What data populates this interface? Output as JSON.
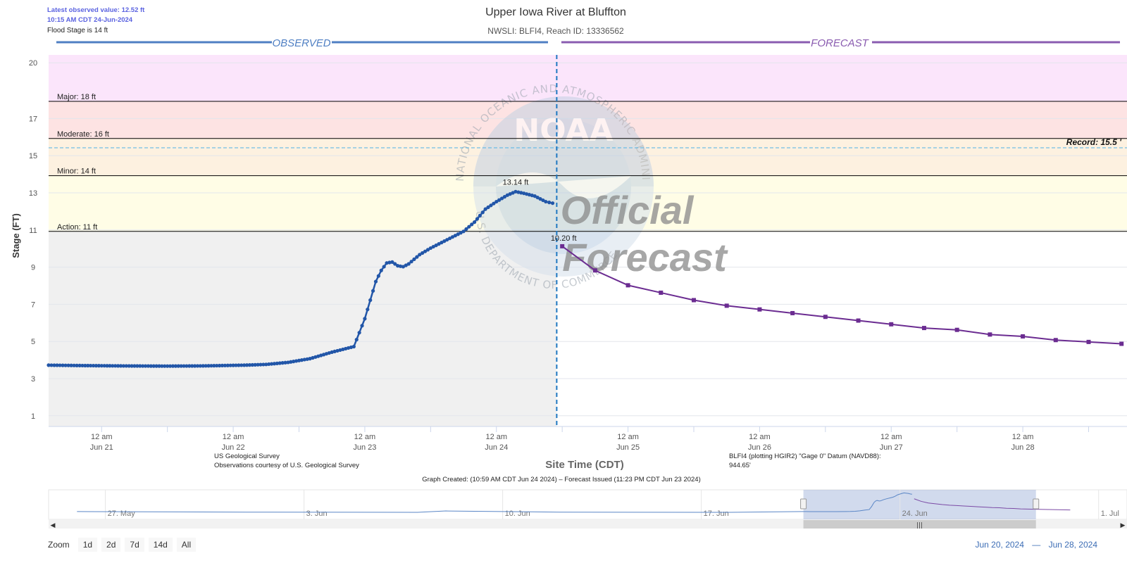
{
  "header": {
    "latest_value": "Latest observed value: 12.52 ft",
    "latest_time": "10:15 AM CDT 24-Jun-2024",
    "flood_stage_note": "Flood Stage is 14 ft",
    "title": "Upper Iowa River at Bluffton",
    "subtitle": "NWSLI: BLFI4, Reach ID: 13336562"
  },
  "labels": {
    "observed": "OBSERVED",
    "forecast": "FORECAST",
    "ylabel": "Stage (FT)",
    "xlabel": "Site Time (CDT)",
    "source_line1": "US Geological Survey",
    "source_line2": "Observations courtesy of U.S. Geological Survey",
    "datum_line1": "BLFI4 (plotting HGIR2) \"Gage 0\" Datum (NAVD88):",
    "datum_line2": "944.65'",
    "graph_created": "Graph Created: (10:59 AM CDT Jun 24 2024) – Forecast Issued (11:23 PM CDT Jun 23 2024)",
    "peak_label": "13.14 ft",
    "forecast_start_label": "10.20 ft",
    "watermark_official": "Official",
    "watermark_forecast": "Forecast",
    "watermark_logo": "NOAA",
    "watermark_ring_top": "NATIONAL OCEANIC AND ATMOSPHERIC ADMINISTRATION",
    "watermark_ring_bottom": "U.S. DEPARTMENT OF COMMERCE"
  },
  "thresholds": [
    {
      "name": "Major: 18 ft",
      "value": 18,
      "color": "#fbe5fb"
    },
    {
      "name": "Moderate: 16 ft",
      "value": 16,
      "color": "#fde3e3"
    },
    {
      "name": "Minor: 14 ft",
      "value": 14,
      "color": "#fdf1e0"
    },
    {
      "name": "Action: 11 ft",
      "value": 11,
      "color": "#fffde6"
    }
  ],
  "record": {
    "label": "Record: 15.5 '",
    "value": 15.5
  },
  "colors": {
    "observed": "#2256a8",
    "forecast": "#6b2c91",
    "divider": "#1f78c1",
    "range_text": "#3c6db5",
    "navigator_observed": "#5a86c6",
    "navigator_forecast": "#7b4aa5"
  },
  "chart_data": {
    "type": "line",
    "xlabel": "Site Time (CDT)",
    "ylabel": "Stage (FT)",
    "ylim": [
      0.5,
      20.5
    ],
    "xlim": [
      "2024-06-20 14:20",
      "2024-06-28 19:00"
    ],
    "y_ticks": [
      1,
      3,
      5,
      7,
      9,
      11,
      13,
      15,
      17,
      20
    ],
    "x_ticks": [
      {
        "t": "2024-06-21 00:00",
        "line1": "12 am",
        "line2": "Jun 21"
      },
      {
        "t": "2024-06-22 00:00",
        "line1": "12 am",
        "line2": "Jun 22"
      },
      {
        "t": "2024-06-23 00:00",
        "line1": "12 am",
        "line2": "Jun 23"
      },
      {
        "t": "2024-06-24 00:00",
        "line1": "12 am",
        "line2": "Jun 24"
      },
      {
        "t": "2024-06-25 00:00",
        "line1": "12 am",
        "line2": "Jun 25"
      },
      {
        "t": "2024-06-26 00:00",
        "line1": "12 am",
        "line2": "Jun 26"
      },
      {
        "t": "2024-06-27 00:00",
        "line1": "12 am",
        "line2": "Jun 27"
      },
      {
        "t": "2024-06-28 00:00",
        "line1": "12 am",
        "line2": "Jun 28"
      }
    ],
    "forecast_divider_time": "2024-06-24 11:00",
    "series": [
      {
        "kind": "observed",
        "x": [
          "2024-06-20 14:20",
          "2024-06-20 20:00",
          "2024-06-21 04:00",
          "2024-06-21 12:00",
          "2024-06-21 18:00",
          "2024-06-22 02:00",
          "2024-06-22 06:00",
          "2024-06-22 10:00",
          "2024-06-22 14:00",
          "2024-06-22 18:00",
          "2024-06-22 22:00",
          "2024-06-23 00:00",
          "2024-06-23 02:00",
          "2024-06-23 03:00",
          "2024-06-23 04:00",
          "2024-06-23 05:00",
          "2024-06-23 06:00",
          "2024-06-23 07:00",
          "2024-06-23 08:00",
          "2024-06-23 10:00",
          "2024-06-23 12:00",
          "2024-06-23 14:00",
          "2024-06-23 16:00",
          "2024-06-23 18:00",
          "2024-06-23 20:00",
          "2024-06-23 22:00",
          "2024-06-24 00:00",
          "2024-06-24 02:00",
          "2024-06-24 03:30",
          "2024-06-24 05:00",
          "2024-06-24 07:00",
          "2024-06-24 09:00",
          "2024-06-24 10:15"
        ],
        "y": [
          3.8,
          3.78,
          3.76,
          3.75,
          3.76,
          3.8,
          3.84,
          3.95,
          4.15,
          4.5,
          4.8,
          6.3,
          8.3,
          8.9,
          9.3,
          9.35,
          9.15,
          9.1,
          9.25,
          9.75,
          10.1,
          10.4,
          10.7,
          11.0,
          11.5,
          12.2,
          12.6,
          12.95,
          13.14,
          13.05,
          12.9,
          12.6,
          12.52
        ]
      },
      {
        "kind": "forecast",
        "x": [
          "2024-06-24 12:00",
          "2024-06-24 18:00",
          "2024-06-25 00:00",
          "2024-06-25 06:00",
          "2024-06-25 12:00",
          "2024-06-25 18:00",
          "2024-06-26 00:00",
          "2024-06-26 06:00",
          "2024-06-26 12:00",
          "2024-06-26 18:00",
          "2024-06-27 00:00",
          "2024-06-27 06:00",
          "2024-06-27 12:00",
          "2024-06-27 18:00",
          "2024-06-28 00:00",
          "2024-06-28 06:00",
          "2024-06-28 12:00",
          "2024-06-28 18:00"
        ],
        "y": [
          10.2,
          8.9,
          8.1,
          7.7,
          7.3,
          7.0,
          6.8,
          6.6,
          6.4,
          6.2,
          6.0,
          5.8,
          5.7,
          5.45,
          5.35,
          5.15,
          5.05,
          4.95
        ]
      }
    ]
  },
  "navigator": {
    "labels": [
      {
        "t": "2024-05-27",
        "text": "27. May"
      },
      {
        "t": "2024-06-03",
        "text": "3. Jun"
      },
      {
        "t": "2024-06-10",
        "text": "10. Jun"
      },
      {
        "t": "2024-06-17",
        "text": "17. Jun"
      },
      {
        "t": "2024-06-24",
        "text": "24. Jun"
      },
      {
        "t": "2024-07-01",
        "text": "1. Jul"
      }
    ],
    "start": "2024-05-25",
    "end": "2024-07-02",
    "selection_start": "2024-06-20 14:20",
    "selection_end": "2024-06-28 19:00"
  },
  "zoom": {
    "label": "Zoom",
    "buttons": [
      "1d",
      "2d",
      "7d",
      "14d",
      "All"
    ]
  },
  "range": {
    "from": "Jun 20, 2024",
    "separator": "—",
    "to": "Jun 28, 2024"
  }
}
